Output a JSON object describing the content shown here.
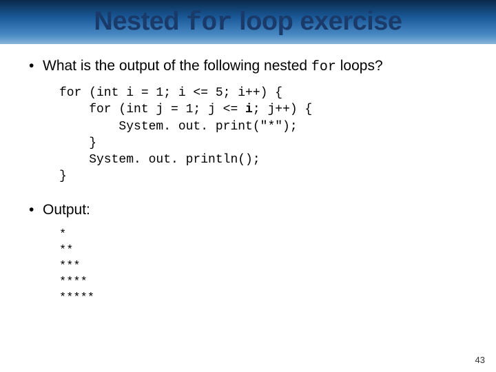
{
  "header": {
    "title_parts": [
      "Nested ",
      "for",
      " loop exercise"
    ],
    "band_gradient": [
      "#0a2a4a",
      "#1a5a9a",
      "#4a8ac4",
      "#89b5d8"
    ],
    "title_color": "#1a3a6a",
    "title_fontsize": 38
  },
  "bullets": [
    {
      "text_prefix": "What is the output of the following nested ",
      "text_mono": "for",
      "text_suffix": " loops?"
    },
    {
      "text_prefix": "Output:",
      "text_mono": "",
      "text_suffix": ""
    }
  ],
  "code": {
    "fontsize": 18,
    "font": "Courier New",
    "lines_html": "for (int i = 1; i <= 5; i++) {\n    for (int j = 1; j <= <span class=\"bold\">i</span>; j++) {\n        System. out. print(\"*\");\n    }\n    System. out. println();\n}"
  },
  "output": {
    "fontsize": 17,
    "lines": "*\n**\n***\n****\n*****"
  },
  "page_number": "43",
  "colors": {
    "background": "#ffffff",
    "text": "#000000",
    "page_num": "#333333"
  }
}
